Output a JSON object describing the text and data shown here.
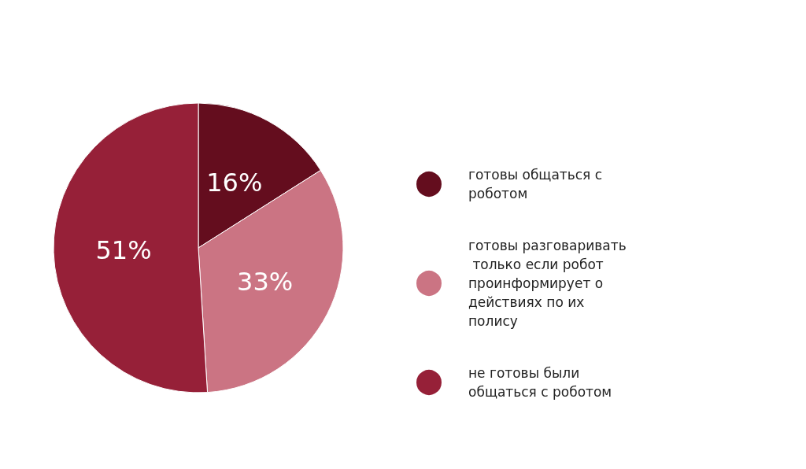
{
  "chart_data": {
    "type": "pie",
    "categories": [
      "готовы общаться с роботом",
      "готовы разговаривать только если робот проинформирует о действиях по их полису",
      "не готовы были общаться с роботом"
    ],
    "values": [
      16,
      33,
      51
    ],
    "colors": [
      "#640d1e",
      "#cb7483",
      "#962038"
    ],
    "value_labels": [
      "16%",
      "33%",
      "51%"
    ],
    "legend": "right"
  }
}
